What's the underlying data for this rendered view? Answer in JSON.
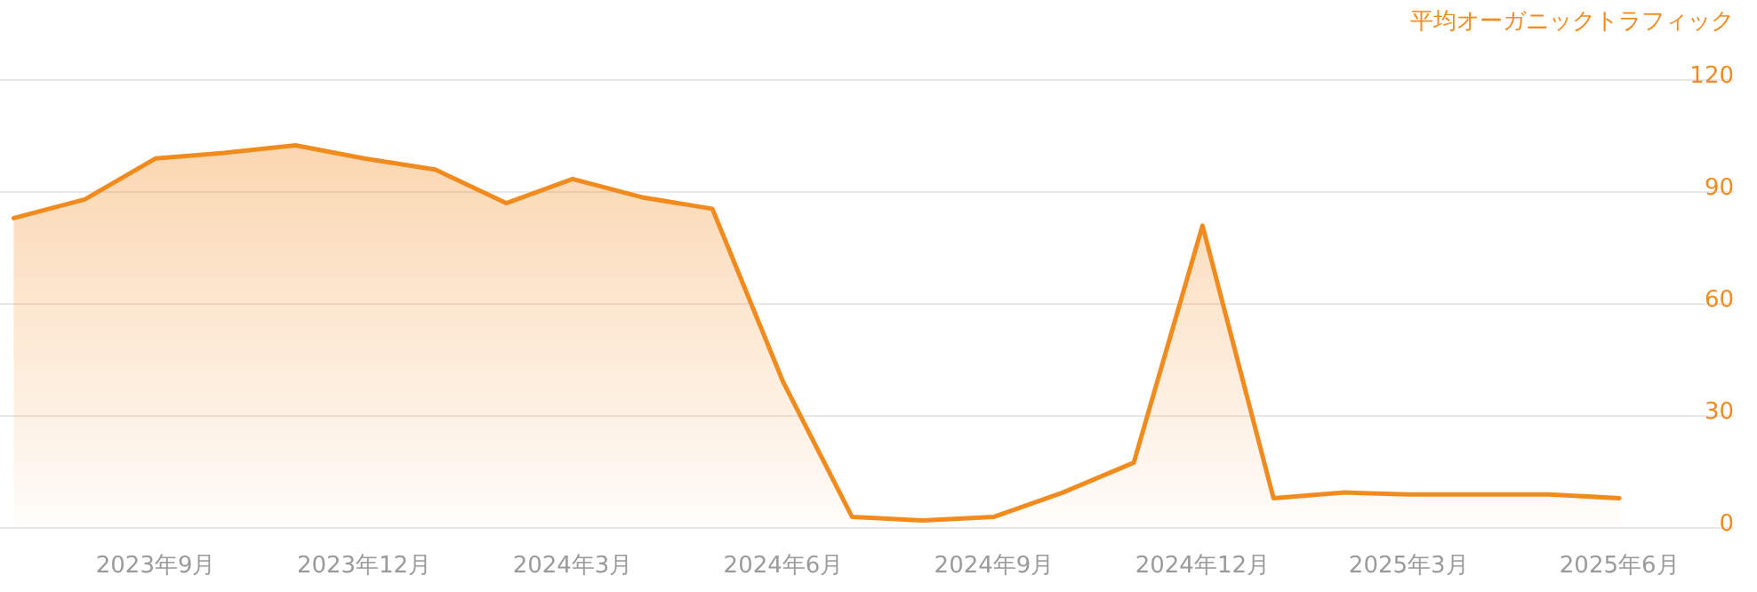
{
  "chart_data": {
    "type": "area",
    "ylabel": "平均オーガニックトラフィック",
    "x": [
      "2023-07",
      "2023-08",
      "2023-09",
      "2023-10",
      "2023-11",
      "2023-12",
      "2024-01",
      "2024-02",
      "2024-03",
      "2024-04",
      "2024-05",
      "2024-06",
      "2024-07",
      "2024-08",
      "2024-09",
      "2024-10",
      "2024-11",
      "2024-12",
      "2025-01",
      "2025-02",
      "2025-03",
      "2025-04",
      "2025-05",
      "2025-06"
    ],
    "series": [
      {
        "color": "#f28b1e",
        "axis": "y2",
        "values": [
          83,
          88,
          99,
          100.5,
          102.5,
          99,
          96,
          87,
          93.5,
          88.5,
          85.5,
          39,
          3,
          2,
          3,
          9.5,
          17.5,
          81,
          8,
          9.5,
          9,
          9,
          9,
          8
        ]
      }
    ],
    "xlim": [
      "2023-06-25",
      "2025-07-21"
    ],
    "xticks": [
      {
        "value": "2023-09",
        "label": "2023年9月"
      },
      {
        "value": "2023-12",
        "label": "2023年12月"
      },
      {
        "value": "2024-03",
        "label": "2024年3月"
      },
      {
        "value": "2024-06",
        "label": "2024年6月"
      },
      {
        "value": "2024-09",
        "label": "2024年9月"
      },
      {
        "value": "2024-12",
        "label": "2024年12月"
      },
      {
        "value": "2025-03",
        "label": "2025年3月"
      },
      {
        "value": "2025-06",
        "label": "2025年6月"
      }
    ],
    "y2lim": [
      0,
      120
    ],
    "y2ticks": [
      0,
      30,
      60,
      90,
      120
    ],
    "grid": "y"
  }
}
